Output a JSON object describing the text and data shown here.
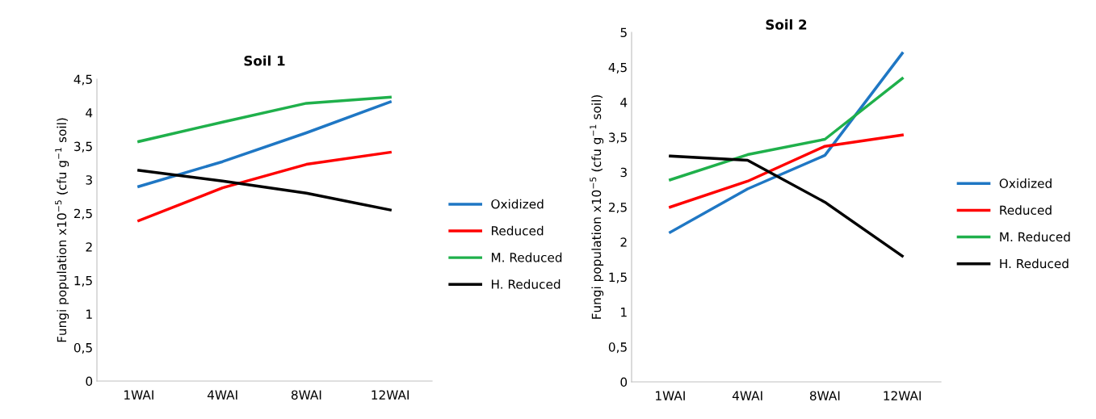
{
  "chart_data": [
    {
      "type": "line",
      "title": "Soil 1",
      "ylabel": "Fungi population x10$^{−5}$ (cfu g$^{−1}$ soil)",
      "categories": [
        "1WAI",
        "4WAI",
        "8WAI",
        "12WAI"
      ],
      "series": [
        {
          "name": "Oxidized",
          "color": "#1f77c4",
          "values": [
            2.9,
            3.27,
            3.7,
            4.16
          ]
        },
        {
          "name": "Reduced",
          "color": "#ff0000",
          "values": [
            2.39,
            2.88,
            3.23,
            3.41
          ]
        },
        {
          "name": "M. Reduced",
          "color": "#1fb04b",
          "values": [
            3.57,
            3.86,
            4.14,
            4.23
          ]
        },
        {
          "name": "H. Reduced",
          "color": "#000000",
          "values": [
            3.14,
            2.98,
            2.8,
            2.55
          ]
        }
      ],
      "ylim": [
        0,
        4.5
      ],
      "yticks": [
        0,
        {
          "value": 0.5,
          "label": "0,5"
        },
        1,
        {
          "value": 1.5,
          "label": "1,5"
        },
        2,
        {
          "value": 2.5,
          "label": "2,5"
        },
        3,
        {
          "value": 3.5,
          "label": "3,5"
        },
        4,
        {
          "value": 4.5,
          "label": "4,5"
        }
      ],
      "grid": false,
      "legend": "right",
      "marker": "none",
      "line_style": "solid"
    },
    {
      "type": "line",
      "title": "Soil 2",
      "ylabel": "Fungi population x10$^{−5}$ (cfu g$^{−1}$ soil)",
      "categories": [
        "1WAI",
        "4WAI",
        "8WAI",
        "12WAI"
      ],
      "series": [
        {
          "name": "Oxidized",
          "color": "#1f77c4",
          "values": [
            2.14,
            2.76,
            3.24,
            4.7
          ]
        },
        {
          "name": "Reduced",
          "color": "#ff0000",
          "values": [
            2.5,
            2.87,
            3.37,
            3.53
          ]
        },
        {
          "name": "M. Reduced",
          "color": "#1fb04b",
          "values": [
            2.89,
            3.25,
            3.47,
            4.34
          ]
        },
        {
          "name": "H. Reduced",
          "color": "#000000",
          "values": [
            3.23,
            3.17,
            2.57,
            1.8
          ]
        }
      ],
      "ylim": [
        0,
        5
      ],
      "yticks": [
        0,
        {
          "value": 0.5,
          "label": "0,5"
        },
        1,
        {
          "value": 1.5,
          "label": "1,5"
        },
        2,
        {
          "value": 2.5,
          "label": "2,5"
        },
        3,
        {
          "value": 3.5,
          "label": "3,5"
        },
        4,
        {
          "value": 4.5,
          "label": "4,5"
        },
        5
      ],
      "grid": false,
      "legend": "right",
      "marker": "none",
      "line_style": "solid"
    }
  ]
}
